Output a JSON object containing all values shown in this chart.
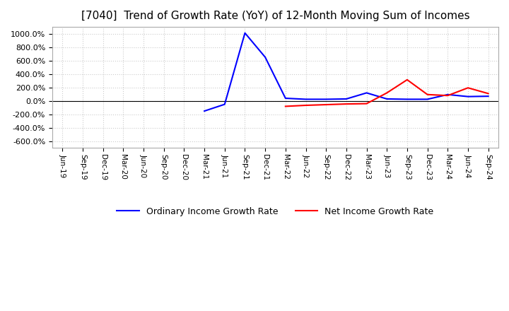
{
  "title": "[7040]  Trend of Growth Rate (YoY) of 12-Month Moving Sum of Incomes",
  "title_fontsize": 11,
  "background_color": "#ffffff",
  "grid_color": "#cccccc",
  "ylim": [
    -700,
    1100
  ],
  "yticks": [
    -600,
    -400,
    -200,
    0,
    200,
    400,
    600,
    800,
    1000
  ],
  "ordinary_income": {
    "label": "Ordinary Income Growth Rate",
    "color": "#0000ff",
    "values": [
      null,
      null,
      null,
      null,
      null,
      null,
      null,
      -150,
      -50,
      1010,
      650,
      40,
      25,
      25,
      30,
      120,
      30,
      25,
      25,
      95,
      65,
      70
    ]
  },
  "net_income": {
    "label": "Net Income Growth Rate",
    "color": "#ff0000",
    "values": [
      null,
      null,
      null,
      null,
      null,
      null,
      null,
      null,
      null,
      null,
      null,
      -80,
      -65,
      -55,
      -45,
      -40,
      120,
      315,
      95,
      80,
      195,
      110
    ]
  },
  "xtick_labels": [
    "Jun-19",
    "Sep-19",
    "Dec-19",
    "Mar-20",
    "Jun-20",
    "Sep-20",
    "Dec-20",
    "Mar-21",
    "Jun-21",
    "Sep-21",
    "Dec-21",
    "Mar-22",
    "Jun-22",
    "Sep-22",
    "Dec-22",
    "Mar-23",
    "Jun-23",
    "Sep-23",
    "Dec-23",
    "Mar-24",
    "Jun-24",
    "Sep-24"
  ]
}
